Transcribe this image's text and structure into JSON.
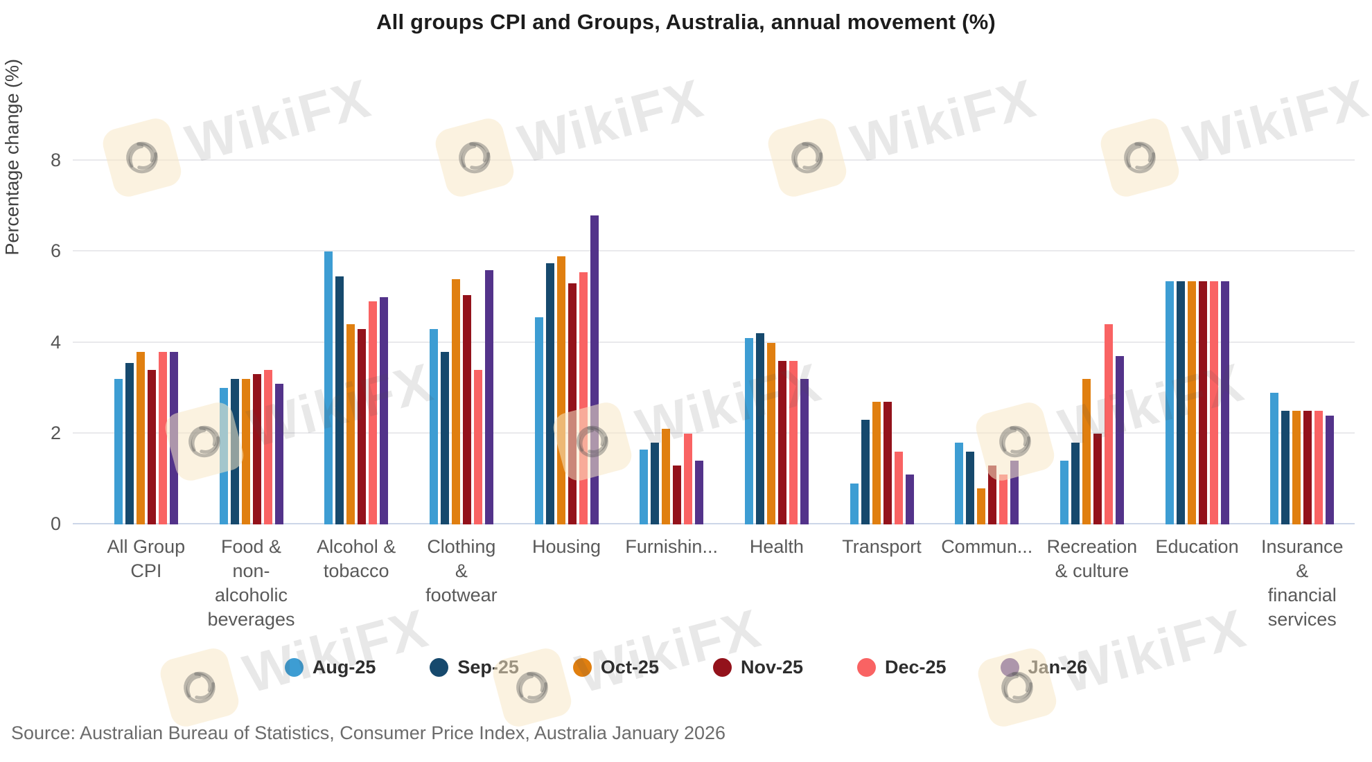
{
  "title": "All groups CPI and Groups, Australia, annual movement (%)",
  "source": "Source: Australian Bureau of Statistics, Consumer Price Index, Australia January 2026",
  "watermark": {
    "text": "WikiFX"
  },
  "chart_data": {
    "type": "bar",
    "title": "All groups CPI and Groups, Australia, annual movement (%)",
    "xlabel": "",
    "ylabel": "Percentage change (%)",
    "ylim": [
      0,
      8
    ],
    "yticks": [
      0,
      2,
      4,
      6,
      8
    ],
    "grid": true,
    "legend_position": "bottom",
    "categories": [
      "All Group\nCPI",
      "Food &\nnon-\nalcoholic\nbeverages",
      "Alcohol &\ntobacco",
      "Clothing\n&\nfootwear",
      "Housing",
      "Furnishin...",
      "Health",
      "Transport",
      "Commun...",
      "Recreation\n& culture",
      "Education",
      "Insurance\n&\nfinancial\nservices"
    ],
    "series": [
      {
        "name": "Aug-25",
        "color": "#3D9DD3",
        "values": [
          3.2,
          3.0,
          6.0,
          4.3,
          4.55,
          1.65,
          4.1,
          0.9,
          1.8,
          1.4,
          5.35,
          2.9
        ]
      },
      {
        "name": "Sep-25",
        "color": "#16496D",
        "values": [
          3.55,
          3.2,
          5.45,
          3.8,
          5.75,
          1.8,
          4.2,
          2.3,
          1.6,
          1.8,
          5.35,
          2.5
        ]
      },
      {
        "name": "Oct-25",
        "color": "#E07F10",
        "values": [
          3.8,
          3.2,
          4.4,
          5.4,
          5.9,
          2.1,
          4.0,
          2.7,
          0.8,
          3.2,
          5.35,
          2.5
        ]
      },
      {
        "name": "Nov-25",
        "color": "#93121B",
        "values": [
          3.4,
          3.3,
          4.3,
          5.05,
          5.3,
          1.3,
          3.6,
          2.7,
          1.3,
          2.0,
          5.35,
          2.5
        ]
      },
      {
        "name": "Dec-25",
        "color": "#F96363",
        "values": [
          3.8,
          3.4,
          4.9,
          3.4,
          5.55,
          2.0,
          3.6,
          1.6,
          1.1,
          4.4,
          5.35,
          2.5
        ]
      },
      {
        "name": "Jan-26",
        "color": "#53338A",
        "values": [
          3.8,
          3.1,
          5.0,
          5.6,
          6.8,
          1.4,
          3.2,
          1.1,
          1.4,
          3.7,
          5.35,
          2.4
        ]
      }
    ]
  }
}
